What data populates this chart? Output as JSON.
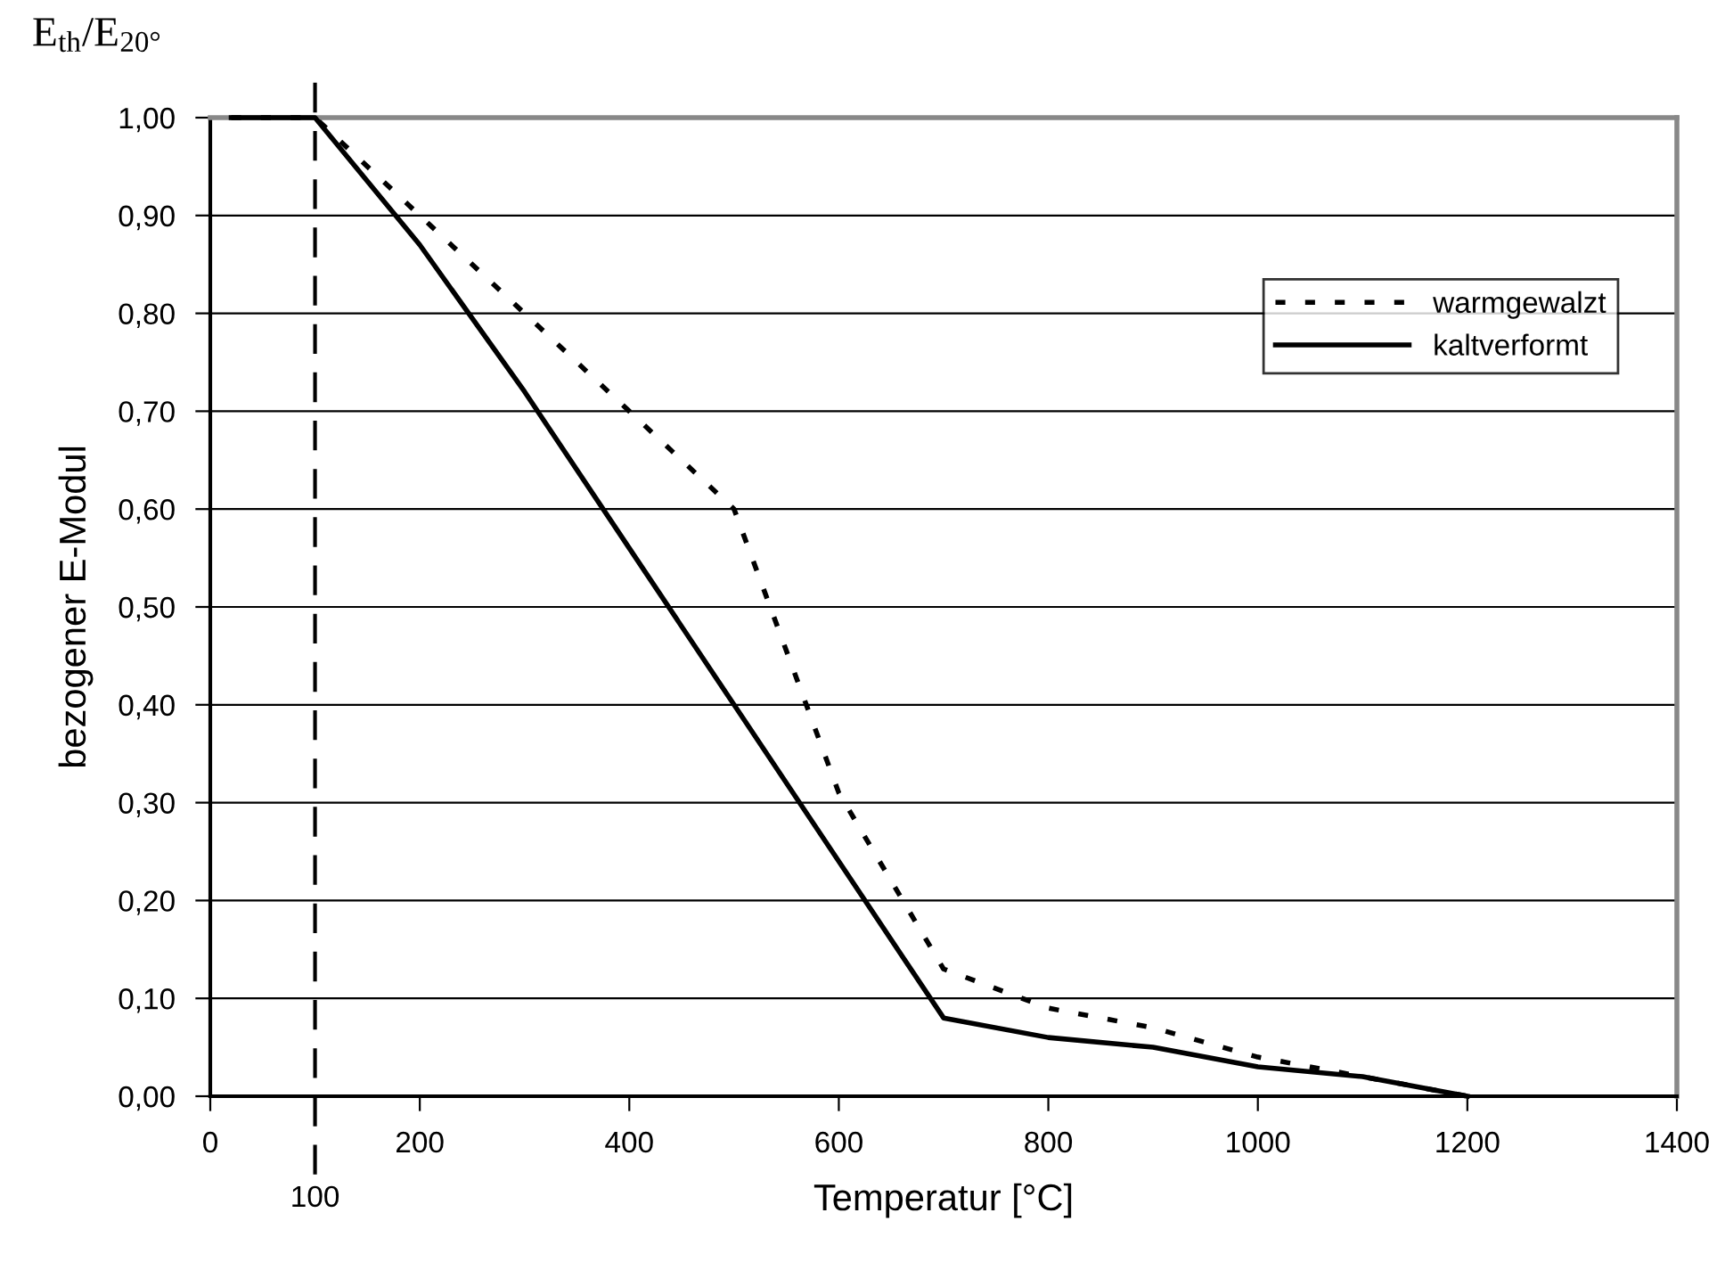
{
  "chart_data": {
    "type": "line",
    "xlabel": "Temperatur [°C]",
    "ylabel": "bezogener E-Modul",
    "annotations": [
      "E$_{th}$/E$_{20°}$"
    ],
    "series": [
      {
        "name": "warmgewalzt",
        "color": "#000000",
        "line_style": "dotted",
        "x": [
          20,
          100,
          200,
          300,
          400,
          500,
          600,
          700,
          800,
          900,
          1000,
          1100,
          1200
        ],
        "values": [
          1.0,
          1.0,
          0.9,
          0.8,
          0.7,
          0.6,
          0.31,
          0.13,
          0.09,
          0.07,
          0.04,
          0.02,
          0.0
        ]
      },
      {
        "name": "kaltverformt",
        "color": "#000000",
        "line_style": "solid",
        "x": [
          20,
          100,
          200,
          300,
          400,
          500,
          600,
          700,
          800,
          900,
          1000,
          1100,
          1200
        ],
        "values": [
          1.0,
          1.0,
          0.87,
          0.72,
          0.56,
          0.4,
          0.24,
          0.08,
          0.06,
          0.05,
          0.03,
          0.02,
          0.0
        ]
      }
    ],
    "xlim": [
      0,
      1400
    ],
    "xticks": [
      0,
      200,
      400,
      600,
      800,
      1000,
      1200,
      1400
    ],
    "ylim": [
      0,
      1
    ],
    "yticks": [
      {
        "value": 0,
        "label": "0,00"
      },
      {
        "value": 0.1,
        "label": "0,10"
      },
      {
        "value": 0.2,
        "label": "0,20"
      },
      {
        "value": 0.3,
        "label": "0,30"
      },
      {
        "value": 0.4,
        "label": "0,40"
      },
      {
        "value": 0.5,
        "label": "0,50"
      },
      {
        "value": 0.6,
        "label": "0,60"
      },
      {
        "value": 0.7,
        "label": "0,70"
      },
      {
        "value": 0.8,
        "label": "0,80"
      },
      {
        "value": 0.9,
        "label": "0,90"
      },
      {
        "value": 1,
        "label": "1,00"
      }
    ],
    "ref_lines": [
      {
        "axis": "x",
        "value": 100,
        "label": "100",
        "line_style": "dashed",
        "color": "#000000"
      }
    ],
    "grid": "y",
    "legend": "top right",
    "marker": "none"
  }
}
